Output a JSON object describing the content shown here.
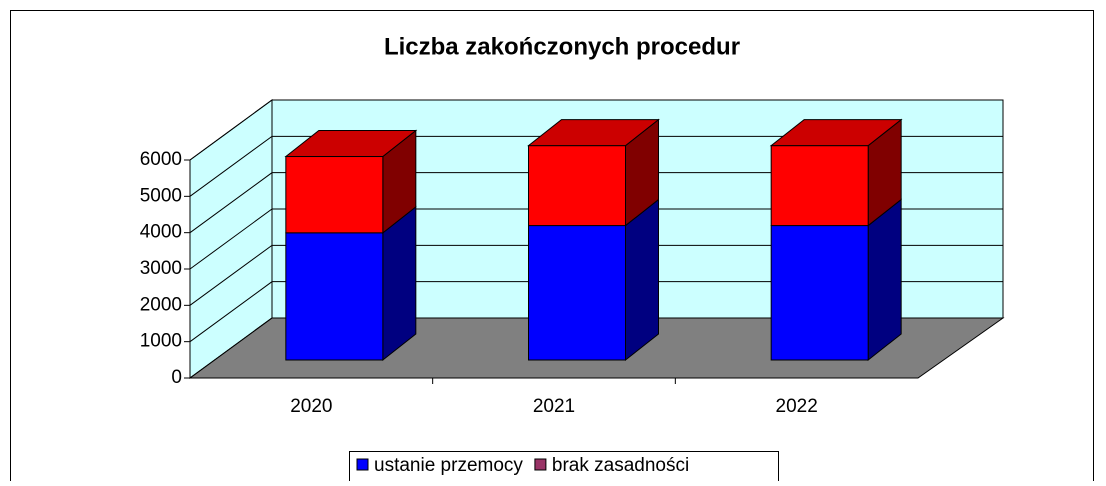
{
  "chart_data": {
    "type": "bar3d_stacked",
    "title": "Liczba zakończonych procedur",
    "categories": [
      "2020",
      "2021",
      "2022"
    ],
    "series": [
      {
        "name": "ustanie przemocy",
        "color": "#0000ff",
        "side_color": "#000080",
        "legend_color": "#0000ff",
        "values": [
          3500,
          3700,
          3700
        ]
      },
      {
        "name": "brak zasadności",
        "color": "#ff0000",
        "side_color": "#800000",
        "top_color": "#cc0000",
        "legend_color": "#993366",
        "values": [
          2100,
          2200,
          2200
        ]
      }
    ],
    "ylim": [
      0,
      6000
    ],
    "yticks": [
      0,
      1000,
      2000,
      3000,
      4000,
      5000,
      6000
    ],
    "grid": true,
    "wall_color": "#ccffff",
    "floor_color": "#808080",
    "legend": "bottom"
  }
}
